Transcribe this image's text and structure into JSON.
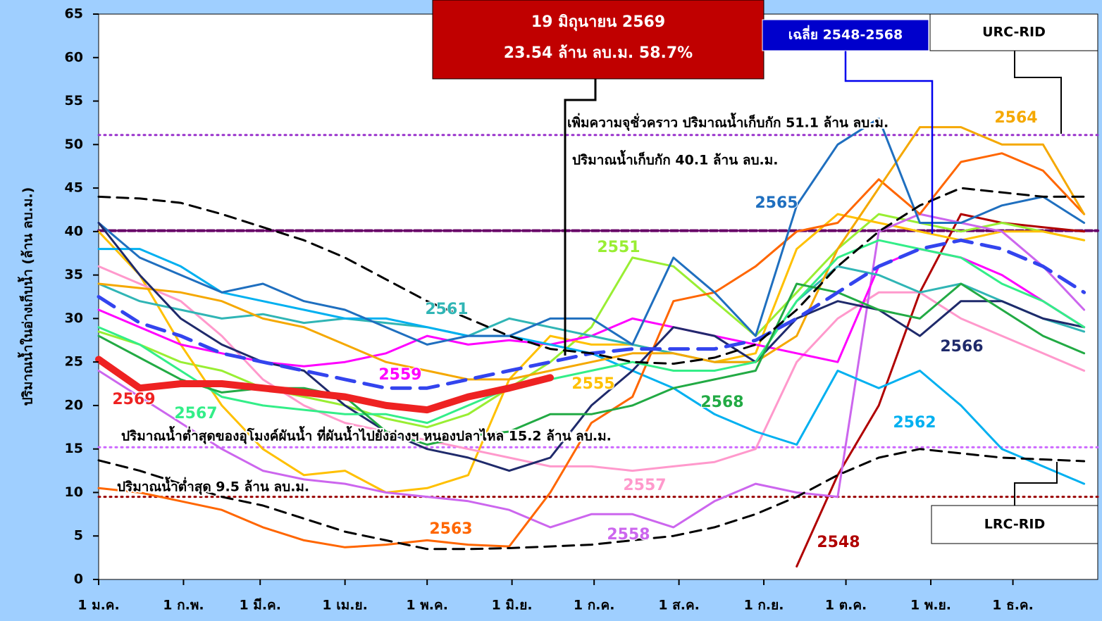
{
  "chart_data": {
    "type": "line",
    "y_axis_label": "ปริมาณน้ำในอ่างเก็บน้ำ (ล้าน ลบ.ม.)",
    "x": [
      0,
      15,
      30,
      45,
      60,
      75,
      90,
      105,
      120,
      135,
      150,
      165,
      180,
      195,
      210,
      225,
      240,
      255,
      270,
      285,
      300,
      315,
      330,
      345,
      360
    ],
    "xlim": [
      0,
      365
    ],
    "xticks": [
      {
        "value": 0,
        "label": "1 ม.ค."
      },
      {
        "value": 31,
        "label": "1 ก.พ."
      },
      {
        "value": 59,
        "label": "1 มี.ค."
      },
      {
        "value": 90,
        "label": "1 เม.ย."
      },
      {
        "value": 120,
        "label": "1 พ.ค."
      },
      {
        "value": 151,
        "label": "1 มิ.ย."
      },
      {
        "value": 181,
        "label": "1 ก.ค."
      },
      {
        "value": 212,
        "label": "1 ส.ค."
      },
      {
        "value": 243,
        "label": "1 ก.ย."
      },
      {
        "value": 273,
        "label": "1 ต.ค."
      },
      {
        "value": 304,
        "label": "1 พ.ย."
      },
      {
        "value": 334,
        "label": "1 ธ.ค."
      }
    ],
    "ylim": [
      0,
      65
    ],
    "yticks": [
      0,
      5,
      10,
      15,
      20,
      25,
      30,
      35,
      40,
      45,
      50,
      55,
      60,
      65
    ],
    "grid": false,
    "series": [
      {
        "name": "2548",
        "color": "#b00000",
        "values": [
          null,
          null,
          null,
          null,
          null,
          null,
          null,
          null,
          null,
          null,
          null,
          null,
          null,
          null,
          null,
          null,
          null,
          1.5,
          12,
          20,
          33,
          42,
          41,
          40.5,
          40
        ]
      },
      {
        "name": "2551",
        "color": "#99ee33",
        "values": [
          28.5,
          27,
          25,
          24,
          22,
          21,
          20,
          18.5,
          17.5,
          19,
          22,
          25,
          29,
          37,
          36,
          32,
          28,
          33,
          38,
          42,
          41,
          40,
          41,
          40,
          39
        ]
      },
      {
        "name": "2555",
        "color": "#ffc000",
        "values": [
          40,
          35,
          27,
          20,
          15,
          12,
          12.5,
          10,
          10.5,
          12,
          23,
          28,
          27,
          27,
          26,
          25,
          26,
          38,
          42,
          41,
          40,
          39,
          40,
          40,
          39
        ]
      },
      {
        "name": "2557",
        "color": "#ff99cc",
        "values": [
          36,
          34,
          32,
          28,
          23,
          20,
          18,
          17,
          16,
          15,
          14,
          13,
          13,
          12.5,
          13,
          13.5,
          15,
          25,
          30,
          33,
          33,
          30,
          28,
          26,
          24
        ]
      },
      {
        "name": "2558",
        "color": "#cc66ee",
        "values": [
          24,
          21,
          18,
          15,
          12.5,
          11.5,
          11,
          10,
          9.5,
          9,
          8,
          6,
          7.5,
          7.5,
          6,
          9,
          11,
          10,
          9.5,
          40,
          42,
          41,
          40,
          36,
          31
        ]
      },
      {
        "name": "2559",
        "color": "#ff00ff",
        "values": [
          31,
          29,
          27,
          26,
          25,
          24.5,
          25,
          26,
          28,
          27,
          27.5,
          27,
          28,
          30,
          29,
          28,
          27,
          26,
          25,
          36,
          38,
          37,
          35,
          32,
          29
        ]
      },
      {
        "name": "2561",
        "color": "#30b5b5",
        "values": [
          34,
          32,
          31,
          30,
          30.5,
          29.5,
          30,
          29.5,
          29,
          28,
          30,
          29,
          28,
          27,
          26,
          25,
          25,
          32,
          36,
          35,
          33,
          34,
          32,
          30,
          28.5
        ]
      },
      {
        "name": "2562",
        "color": "#00b0f0",
        "values": [
          38,
          38,
          36,
          33,
          32,
          31,
          30,
          30,
          29,
          28,
          28,
          27,
          26,
          24,
          22,
          19,
          17,
          15.5,
          24,
          22,
          24,
          20,
          15,
          13,
          11
        ]
      },
      {
        "name": "2563",
        "color": "#ff6600",
        "values": [
          10.5,
          10,
          9,
          8,
          6,
          4.5,
          3.7,
          4,
          4.5,
          4,
          3.8,
          10,
          18,
          21,
          32,
          33,
          36,
          40,
          41,
          46,
          42,
          48,
          49,
          47,
          42
        ]
      },
      {
        "name": "2564",
        "color": "#f5a800",
        "values": [
          34,
          33.5,
          33,
          32,
          30,
          29,
          27,
          25,
          24,
          23,
          23,
          24,
          25,
          26,
          26,
          25,
          25,
          28,
          38,
          45,
          52,
          52,
          50,
          50,
          42
        ]
      },
      {
        "name": "2565",
        "color": "#1f6fbf",
        "values": [
          41,
          37,
          35,
          33,
          34,
          32,
          31,
          29,
          27,
          28,
          28,
          30,
          30,
          27,
          37,
          33,
          28,
          43,
          50,
          53,
          41,
          41,
          43,
          44,
          41
        ]
      },
      {
        "name": "2566",
        "color": "#1f2a6b",
        "values": [
          41,
          35,
          30,
          27,
          25,
          24,
          20,
          17,
          15,
          14,
          12.5,
          14,
          20,
          24,
          29,
          28,
          25,
          30,
          32,
          31,
          28,
          32,
          32,
          30,
          29
        ]
      },
      {
        "name": "2567",
        "color": "#33ee88",
        "values": [
          29,
          27,
          24,
          21,
          20,
          19.5,
          19,
          19,
          18,
          20,
          22,
          23,
          24,
          25,
          24,
          24,
          25,
          32,
          37,
          39,
          38,
          37,
          34,
          32,
          29
        ]
      },
      {
        "name": "2568",
        "color": "#22aa44",
        "values": [
          28,
          25.5,
          23,
          21.5,
          22,
          22,
          21,
          17,
          15.5,
          16.5,
          17,
          19,
          19,
          20,
          22,
          23,
          24,
          34,
          33,
          31,
          30,
          34,
          31,
          28,
          26
        ]
      },
      {
        "name": "เฉลี่ย 2548-2568",
        "color": "#3344ee",
        "line_style": "dashed",
        "values": [
          32.5,
          29.5,
          28,
          26,
          25,
          24,
          23,
          22,
          22,
          23,
          24,
          25,
          26,
          26.5,
          26.5,
          26.5,
          27.5,
          30,
          33,
          36,
          38,
          39,
          38,
          36,
          33
        ]
      },
      {
        "name": "URC-RID",
        "color": "#000000",
        "line_style": "dashed",
        "values": [
          44,
          43.8,
          43.3,
          42,
          40.5,
          39,
          37,
          34.5,
          32,
          30,
          28,
          26.5,
          26,
          25,
          24.8,
          25.5,
          27,
          31,
          36,
          40,
          43,
          45,
          44.5,
          44,
          44
        ]
      },
      {
        "name": "LRC-RID",
        "color": "#000000",
        "line_style": "dashed",
        "values": [
          13.7,
          12.5,
          11,
          9.5,
          8.5,
          7,
          5.5,
          4.5,
          3.5,
          3.5,
          3.6,
          3.8,
          4,
          4.5,
          5,
          6,
          7.5,
          9.5,
          12,
          14,
          15,
          14.5,
          14,
          13.8,
          13.6
        ]
      },
      {
        "name": "2569",
        "color": "#ee2222",
        "values": [
          25.3,
          22,
          22.5,
          22.5,
          22,
          21.5,
          21,
          20,
          19.5,
          21,
          22,
          23.2,
          null,
          null,
          null,
          null,
          null,
          null,
          null,
          null,
          null,
          null,
          null,
          null,
          null
        ]
      }
    ],
    "reference_lines": [
      {
        "value": 51.1,
        "color": "#9933cc",
        "label": "เพิ่มความจุชั่วคราว ปริมาณน้ำเก็บกัก 51.1 ล้าน ลบ.ม."
      },
      {
        "value": 40.1,
        "color": "#660066",
        "label": "ปริมาณน้ำเก็บกัก 40.1 ล้าน ลบ.ม."
      },
      {
        "value": 15.2,
        "color": "#cc66ff",
        "label": "ปริมาณน้ำต่ำสุดของอุโมงค์ผันน้ำ ที่ผันน้ำไปยังอ่างฯ หนองปลาไหล 15.2 ล้าน ลบ.ม."
      },
      {
        "value": 9.5,
        "color": "#990000",
        "label": "ปริมาณน้ำต่ำสุด 9.5 ล้าน ลบ.ม."
      }
    ],
    "current_note": [
      "19 มิถุนายน 2569",
      "23.54 ล้าน ลบ.ม. 58.7%"
    ]
  }
}
